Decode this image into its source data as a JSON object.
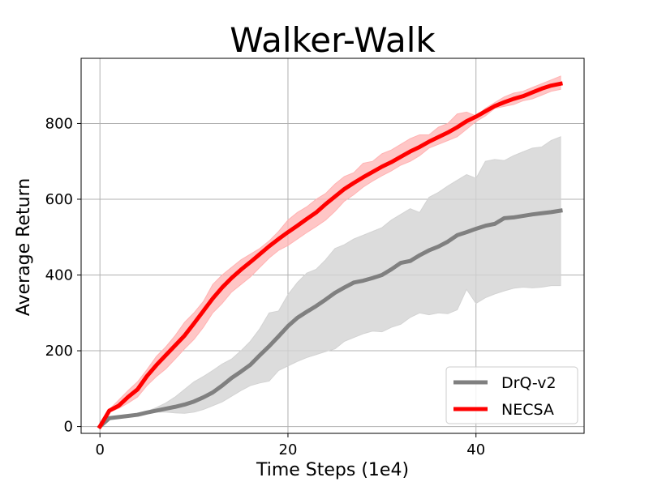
{
  "chart_data": {
    "type": "line",
    "title": "Walker-Walk",
    "xlabel": "Time Steps (1e4)",
    "ylabel": "Average Return",
    "xlim": [
      -2,
      51.5
    ],
    "ylim": [
      -18,
      972
    ],
    "xticks": [
      0,
      20,
      40
    ],
    "yticks": [
      0,
      200,
      400,
      600,
      800
    ],
    "grid": true,
    "legend_position": "bottom-right",
    "x": [
      0,
      1,
      2,
      3,
      4,
      5,
      6,
      7,
      8,
      9,
      10,
      11,
      12,
      13,
      14,
      15,
      16,
      17,
      18,
      19,
      20,
      21,
      22,
      23,
      24,
      25,
      26,
      27,
      28,
      29,
      30,
      31,
      32,
      33,
      34,
      35,
      36,
      37,
      38,
      39,
      40,
      41,
      42,
      43,
      44,
      45,
      46,
      47,
      48,
      49
    ],
    "series": [
      {
        "name": "DrQ-v2",
        "color": "#808080",
        "band_color": "#d3d3d3",
        "values": [
          0,
          22,
          25,
          28,
          31,
          37,
          42,
          47,
          52,
          58,
          66,
          77,
          90,
          108,
          128,
          145,
          163,
          188,
          212,
          238,
          265,
          287,
          303,
          318,
          335,
          353,
          367,
          380,
          385,
          392,
          400,
          415,
          432,
          437,
          452,
          465,
          475,
          488,
          505,
          513,
          522,
          530,
          535,
          550,
          552,
          556,
          560,
          563,
          566,
          570
        ],
        "upper": [
          0,
          24,
          27,
          30,
          34,
          40,
          50,
          62,
          78,
          98,
          118,
          132,
          148,
          165,
          178,
          200,
          225,
          258,
          300,
          305,
          348,
          380,
          405,
          415,
          440,
          470,
          480,
          495,
          505,
          515,
          525,
          545,
          560,
          575,
          565,
          605,
          618,
          635,
          650,
          665,
          655,
          700,
          705,
          702,
          715,
          725,
          735,
          738,
          755,
          765
        ],
        "lower": [
          0,
          20,
          23,
          26,
          29,
          34,
          38,
          38,
          36,
          35,
          38,
          45,
          55,
          65,
          80,
          95,
          108,
          115,
          120,
          148,
          160,
          172,
          182,
          190,
          198,
          205,
          225,
          235,
          245,
          252,
          250,
          262,
          270,
          288,
          300,
          295,
          300,
          298,
          308,
          362,
          325,
          340,
          350,
          358,
          365,
          368,
          366,
          368,
          372,
          372
        ]
      },
      {
        "name": "NECSA",
        "color": "#ff0000",
        "band_color": "#ffb3b3",
        "values": [
          0,
          42,
          55,
          78,
          98,
          133,
          162,
          188,
          214,
          240,
          272,
          305,
          338,
          367,
          392,
          414,
          434,
          455,
          476,
          495,
          513,
          530,
          548,
          565,
          587,
          607,
          627,
          643,
          658,
          672,
          686,
          698,
          712,
          726,
          738,
          752,
          764,
          776,
          790,
          806,
          818,
          832,
          846,
          856,
          865,
          872,
          882,
          892,
          900,
          905
        ],
        "upper": [
          0,
          45,
          70,
          95,
          118,
          150,
          185,
          210,
          240,
          275,
          300,
          330,
          375,
          400,
          420,
          440,
          455,
          470,
          490,
          515,
          545,
          565,
          580,
          600,
          615,
          640,
          660,
          670,
          695,
          700,
          720,
          730,
          745,
          760,
          770,
          770,
          790,
          800,
          825,
          830,
          820,
          840,
          855,
          870,
          880,
          885,
          895,
          905,
          915,
          925
        ],
        "lower": [
          0,
          38,
          48,
          62,
          78,
          108,
          132,
          152,
          178,
          205,
          230,
          262,
          300,
          325,
          355,
          375,
          395,
          420,
          445,
          465,
          478,
          495,
          512,
          528,
          545,
          568,
          595,
          612,
          632,
          648,
          662,
          675,
          690,
          700,
          715,
          735,
          745,
          755,
          765,
          785,
          805,
          820,
          840,
          845,
          850,
          860,
          865,
          875,
          885,
          890
        ]
      }
    ]
  }
}
